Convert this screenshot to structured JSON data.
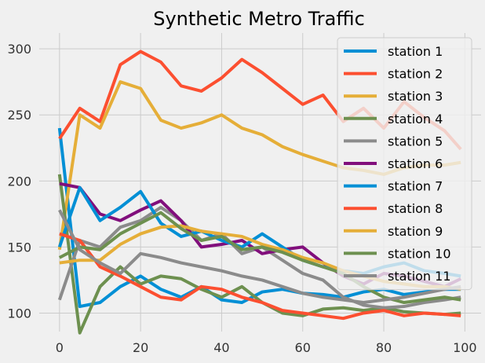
{
  "chart_data": {
    "type": "line",
    "title": "Synthetic Metro Traffic",
    "xlabel": "",
    "ylabel": "",
    "xlim": [
      -5,
      104
    ],
    "ylim": [
      86,
      312
    ],
    "x_ticks": [
      0,
      20,
      40,
      60,
      80,
      100
    ],
    "y_ticks": [
      100,
      150,
      200,
      250,
      300
    ],
    "grid": true,
    "legend_placement": "top-right",
    "x": [
      0,
      5,
      10,
      15,
      20,
      25,
      30,
      35,
      40,
      45,
      50,
      55,
      60,
      65,
      70,
      75,
      80,
      85,
      90,
      95,
      99
    ],
    "series": [
      {
        "name": "station 1",
        "color": "#008fd5",
        "values": [
          240,
          105,
          108,
          120,
          128,
          118,
          112,
          120,
          110,
          108,
          116,
          118,
          115,
          114,
          112,
          116,
          118,
          114,
          116,
          118,
          118
        ]
      },
      {
        "name": "station 2",
        "color": "#fc4f30",
        "values": [
          232,
          255,
          245,
          288,
          298,
          290,
          272,
          268,
          278,
          292,
          282,
          270,
          258,
          265,
          245,
          255,
          240,
          260,
          248,
          238,
          224
        ]
      },
      {
        "name": "station 3",
        "color": "#e5ae38",
        "values": [
          148,
          250,
          240,
          275,
          270,
          246,
          240,
          244,
          250,
          240,
          235,
          226,
          220,
          215,
          210,
          208,
          205,
          210,
          212,
          212,
          214
        ]
      },
      {
        "name": "station 4",
        "color": "#6d904f",
        "values": [
          205,
          85,
          120,
          135,
          122,
          128,
          126,
          118,
          112,
          120,
          108,
          100,
          98,
          103,
          104,
          102,
          104,
          101,
          100,
          99,
          100
        ]
      },
      {
        "name": "station 5",
        "color": "#8b8b8b",
        "values": [
          110,
          155,
          150,
          165,
          170,
          180,
          170,
          155,
          160,
          145,
          150,
          140,
          130,
          125,
          112,
          106,
          104,
          105,
          108,
          110,
          112
        ]
      },
      {
        "name": "station 6",
        "color": "#810f7c",
        "values": [
          198,
          195,
          175,
          170,
          178,
          185,
          170,
          150,
          152,
          155,
          145,
          148,
          150,
          138,
          128,
          122,
          130,
          128,
          124,
          120,
          126
        ]
      },
      {
        "name": "station 7",
        "color": "#008fd5",
        "values": [
          150,
          195,
          170,
          180,
          192,
          168,
          158,
          162,
          155,
          150,
          160,
          150,
          140,
          135,
          132,
          130,
          135,
          138,
          132,
          130,
          128
        ]
      },
      {
        "name": "station 8",
        "color": "#fc4f30",
        "values": [
          160,
          155,
          135,
          128,
          120,
          112,
          110,
          120,
          118,
          112,
          108,
          102,
          100,
          98,
          96,
          100,
          102,
          98,
          100,
          99,
          98
        ]
      },
      {
        "name": "station 9",
        "color": "#e5ae38",
        "values": [
          138,
          140,
          140,
          152,
          160,
          165,
          166,
          162,
          160,
          158,
          152,
          148,
          142,
          138,
          132,
          128,
          124,
          122,
          120,
          120,
          118
        ]
      },
      {
        "name": "station 10",
        "color": "#6d904f",
        "values": [
          142,
          150,
          148,
          160,
          168,
          176,
          164,
          155,
          158,
          148,
          150,
          146,
          140,
          135,
          130,
          120,
          112,
          108,
          110,
          112,
          110
        ]
      },
      {
        "name": "station 11",
        "color": "#8b8b8b",
        "values": [
          178,
          148,
          138,
          130,
          145,
          142,
          138,
          135,
          132,
          128,
          125,
          120,
          115,
          112,
          110,
          108,
          110,
          112,
          115,
          118,
          120
        ]
      }
    ]
  }
}
